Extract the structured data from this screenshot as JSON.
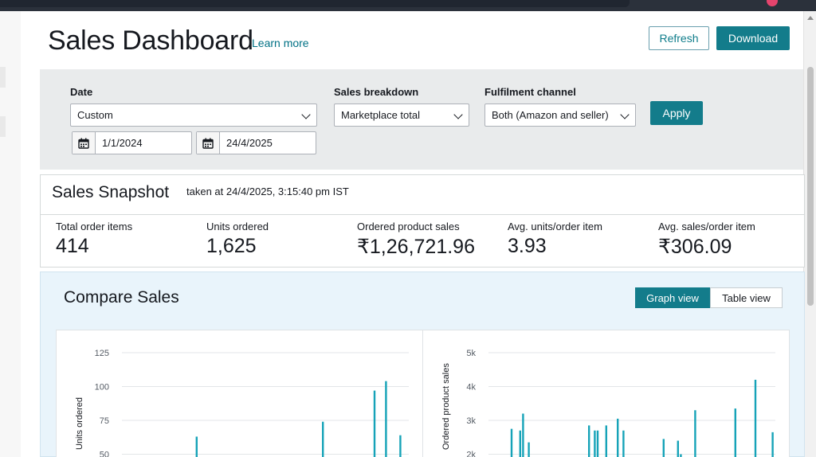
{
  "page": {
    "title": "Sales Dashboard",
    "learn_more": "Learn more",
    "refresh_label": "Refresh",
    "download_label": "Download"
  },
  "filters": {
    "date_label": "Date",
    "date_value": "Custom",
    "start_date": "1/1/2024",
    "end_date": "24/4/2025",
    "breakdown_label": "Sales breakdown",
    "breakdown_value": "Marketplace total",
    "fulfilment_label": "Fulfilment channel",
    "fulfilment_value": "Both (Amazon and seller)",
    "apply_label": "Apply"
  },
  "snapshot": {
    "title": "Sales Snapshot",
    "taken_at": "taken at 24/4/2025, 3:15:40 pm IST",
    "metrics": [
      {
        "label": "Total order items",
        "value": "414"
      },
      {
        "label": "Units ordered",
        "value": "1,625"
      },
      {
        "label": "Ordered product sales",
        "value": "₹1,26,721.96"
      },
      {
        "label": "Avg. units/order item",
        "value": "3.93"
      },
      {
        "label": "Avg. sales/order item",
        "value": "₹306.09"
      }
    ]
  },
  "compare": {
    "title": "Compare Sales",
    "graph_view_label": "Graph view",
    "table_view_label": "Table view"
  },
  "colors": {
    "accent": "#137c8b",
    "bar": "#16a3b8",
    "link": "#007185"
  },
  "chart_data": [
    {
      "type": "bar",
      "ylabel": "Units ordered",
      "yticks": [
        "125",
        "100",
        "75",
        "50"
      ],
      "ylim": [
        0,
        125
      ],
      "grid": true,
      "bars": [
        {
          "x": 0.26,
          "value": 63
        },
        {
          "x": 0.7,
          "value": 74
        },
        {
          "x": 0.88,
          "value": 97
        },
        {
          "x": 0.92,
          "value": 104
        },
        {
          "x": 0.97,
          "value": 64
        }
      ]
    },
    {
      "type": "bar",
      "ylabel": "Ordered product sales",
      "yticks": [
        "5k",
        "4k",
        "3k",
        "2k"
      ],
      "ylim": [
        0,
        5000
      ],
      "grid": true,
      "bars": [
        {
          "x": 0.08,
          "value": 2750
        },
        {
          "x": 0.11,
          "value": 2700
        },
        {
          "x": 0.12,
          "value": 3200
        },
        {
          "x": 0.14,
          "value": 2350
        },
        {
          "x": 0.35,
          "value": 2850
        },
        {
          "x": 0.37,
          "value": 2700
        },
        {
          "x": 0.38,
          "value": 2700
        },
        {
          "x": 0.41,
          "value": 2850
        },
        {
          "x": 0.45,
          "value": 3050
        },
        {
          "x": 0.47,
          "value": 2700
        },
        {
          "x": 0.61,
          "value": 2450
        },
        {
          "x": 0.66,
          "value": 2400
        },
        {
          "x": 0.67,
          "value": 2000
        },
        {
          "x": 0.72,
          "value": 3300
        },
        {
          "x": 0.86,
          "value": 3350
        },
        {
          "x": 0.93,
          "value": 4200
        },
        {
          "x": 0.99,
          "value": 2650
        }
      ]
    }
  ]
}
